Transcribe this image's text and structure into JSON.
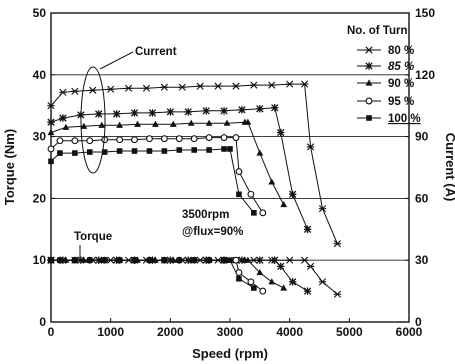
{
  "chart_data": {
    "type": "line",
    "title": "",
    "xlabel": "Speed (rpm)",
    "ylabel_left": "Torque (Nm)",
    "ylabel_right": "Current (A)",
    "xlim": [
      0,
      6000
    ],
    "ylim_left": [
      0,
      50
    ],
    "ylim_right": [
      0,
      150
    ],
    "x_ticks": [
      "0",
      "1000",
      "2000",
      "3000",
      "4000",
      "5000",
      "6000"
    ],
    "y_left_ticks": [
      "0",
      "10",
      "20",
      "30",
      "40",
      "50"
    ],
    "y_right_ticks": [
      "0",
      "30",
      "60",
      "90",
      "120",
      "150"
    ],
    "grid": "horizontal",
    "legend_title": "No. of Turn",
    "legend_position": "top-right",
    "annotations": {
      "current": "Current",
      "torque": "Torque",
      "note_line1": "3500rpm",
      "note_line2": "@flux=90%"
    },
    "series": [
      {
        "name": "80 %",
        "marker": "asterisk",
        "label_italic": false,
        "label_underline": false,
        "current": {
          "x": [
            0,
            200,
            400,
            700,
            1000,
            1300,
            1600,
            1900,
            2200,
            2500,
            2800,
            3100,
            3400,
            3700,
            4000,
            4250,
            4350,
            4550,
            4800
          ],
          "y": [
            105,
            111.5,
            112,
            112.5,
            113,
            113.5,
            113.5,
            114,
            114,
            114.5,
            114.5,
            114.5,
            115,
            115,
            115.5,
            115.5,
            85,
            55,
            38
          ]
        },
        "torque": {
          "x": [
            0,
            200,
            400,
            700,
            1000,
            1300,
            1600,
            1900,
            2200,
            2500,
            2800,
            3100,
            3400,
            3700,
            4000,
            4250,
            4350,
            4550,
            4800
          ],
          "y": [
            10,
            10,
            10,
            10,
            10,
            10,
            10,
            10,
            10,
            10,
            10,
            10,
            10,
            10,
            10,
            10,
            9,
            6.5,
            4.5
          ]
        }
      },
      {
        "name": "85 %",
        "marker": "star",
        "label_italic": true,
        "label_underline": false,
        "current": {
          "x": [
            0,
            200,
            500,
            800,
            1100,
            1400,
            1700,
            2000,
            2300,
            2600,
            2900,
            3200,
            3500,
            3750,
            3850,
            4050,
            4300
          ],
          "y": [
            97,
            99,
            100.5,
            101,
            101,
            101.5,
            101.5,
            102,
            102,
            102.5,
            102.5,
            103,
            103.5,
            104,
            92,
            62,
            45
          ]
        },
        "torque": {
          "x": [
            0,
            200,
            500,
            800,
            1100,
            1400,
            1700,
            2000,
            2300,
            2600,
            2900,
            3200,
            3500,
            3750,
            3850,
            4050,
            4300
          ],
          "y": [
            10,
            10,
            10,
            10,
            10,
            10,
            10,
            10,
            10,
            10,
            10,
            10,
            10,
            10,
            9,
            6.5,
            5
          ]
        }
      },
      {
        "name": "90 %",
        "marker": "triangle",
        "label_italic": false,
        "label_underline": false,
        "current": {
          "x": [
            0,
            250,
            550,
            850,
            1150,
            1450,
            1750,
            2050,
            2350,
            2650,
            2950,
            3250,
            3300,
            3500,
            3700,
            3900
          ],
          "y": [
            92,
            94.5,
            95,
            95.5,
            95.5,
            96,
            96,
            96,
            96.5,
            96.5,
            96.5,
            97,
            97,
            82,
            68,
            57
          ]
        },
        "torque": {
          "x": [
            0,
            250,
            550,
            850,
            1150,
            1450,
            1750,
            2050,
            2350,
            2650,
            2950,
            3250,
            3300,
            3500,
            3700,
            3900
          ],
          "y": [
            10,
            10,
            10,
            10,
            10,
            10,
            10,
            10,
            10,
            10,
            10,
            10,
            10,
            8,
            6.5,
            5.5
          ]
        }
      },
      {
        "name": "95 %",
        "marker": "circle",
        "label_italic": false,
        "label_underline": false,
        "current": {
          "x": [
            0,
            150,
            400,
            650,
            900,
            1150,
            1400,
            1650,
            1900,
            2150,
            2400,
            2650,
            2900,
            3100,
            3150,
            3350,
            3550
          ],
          "y": [
            84,
            88,
            88,
            88,
            88.5,
            88.5,
            88.5,
            89,
            89,
            89,
            89,
            89.5,
            89.5,
            89.5,
            73,
            62,
            53
          ]
        },
        "torque": {
          "x": [
            0,
            150,
            400,
            650,
            900,
            1150,
            1400,
            1650,
            1900,
            2150,
            2400,
            2650,
            2900,
            3100,
            3150,
            3350,
            3550
          ],
          "y": [
            10,
            10,
            10,
            10,
            10,
            10,
            10,
            10,
            10,
            10,
            10,
            10,
            10,
            10,
            8,
            6.5,
            5
          ]
        }
      },
      {
        "name": "100 %",
        "marker": "square",
        "label_italic": false,
        "label_underline": true,
        "current": {
          "x": [
            0,
            150,
            400,
            650,
            900,
            1150,
            1400,
            1650,
            1900,
            2150,
            2400,
            2650,
            2900,
            3000,
            3150,
            3400
          ],
          "y": [
            78,
            82,
            82,
            82.5,
            82.5,
            83,
            83,
            83,
            83,
            83.5,
            83.5,
            83.5,
            84,
            84,
            62,
            53
          ]
        },
        "torque": {
          "x": [
            0,
            150,
            400,
            650,
            900,
            1150,
            1400,
            1650,
            1900,
            2150,
            2400,
            2650,
            2900,
            3000,
            3150,
            3400
          ],
          "y": [
            10,
            10,
            10,
            10,
            10,
            10,
            10,
            10,
            10,
            10,
            10,
            10,
            10,
            10,
            7,
            5.5
          ]
        }
      }
    ]
  }
}
